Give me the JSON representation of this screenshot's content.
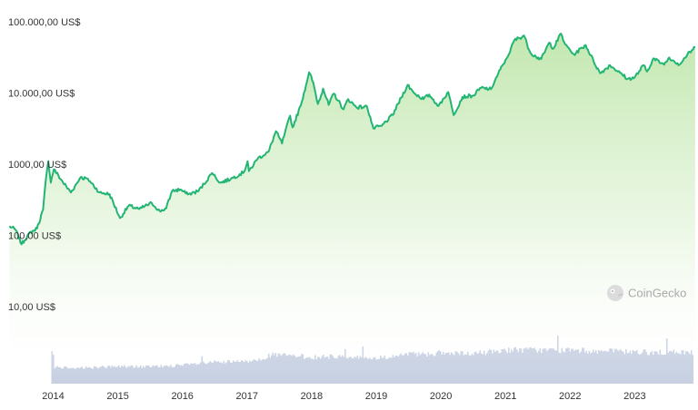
{
  "chart_data": {
    "type": "line",
    "y_scale": "log",
    "ylim": [
      10,
      100000
    ],
    "y_ticks": [
      {
        "value": 100000,
        "label": "100.000,00 US$"
      },
      {
        "value": 10000,
        "label": "10.000,00 US$"
      },
      {
        "value": 1000,
        "label": "1000,00 US$"
      },
      {
        "value": 100,
        "label": "100,00 US$"
      },
      {
        "value": 10,
        "label": "10,00 US$"
      }
    ],
    "x_ticks": [
      "2014",
      "2015",
      "2016",
      "2017",
      "2018",
      "2019",
      "2020",
      "2021",
      "2022",
      "2023"
    ],
    "x_range": [
      "2013-04",
      "2023-12"
    ],
    "series": [
      {
        "points": [
          [
            "2013-04-28",
            135
          ],
          [
            "2013-06-01",
            120
          ],
          [
            "2013-07-05",
            75
          ],
          [
            "2013-08-15",
            105
          ],
          [
            "2013-10-01",
            125
          ],
          [
            "2013-11-05",
            230
          ],
          [
            "2013-11-20",
            600
          ],
          [
            "2013-12-04",
            1100
          ],
          [
            "2013-12-18",
            550
          ],
          [
            "2014-01-05",
            850
          ],
          [
            "2014-02-25",
            560
          ],
          [
            "2014-04-10",
            400
          ],
          [
            "2014-06-03",
            650
          ],
          [
            "2014-07-15",
            620
          ],
          [
            "2014-09-20",
            400
          ],
          [
            "2014-11-15",
            380
          ],
          [
            "2015-01-14",
            175
          ],
          [
            "2015-03-01",
            260
          ],
          [
            "2015-05-01",
            235
          ],
          [
            "2015-07-10",
            285
          ],
          [
            "2015-08-25",
            220
          ],
          [
            "2015-10-01",
            240
          ],
          [
            "2015-11-04",
            420
          ],
          [
            "2015-12-20",
            440
          ],
          [
            "2016-02-01",
            375
          ],
          [
            "2016-04-01",
            420
          ],
          [
            "2016-06-17",
            750
          ],
          [
            "2016-08-02",
            550
          ],
          [
            "2016-10-01",
            620
          ],
          [
            "2016-12-15",
            780
          ],
          [
            "2017-01-04",
            1100
          ],
          [
            "2017-01-12",
            800
          ],
          [
            "2017-03-01",
            1200
          ],
          [
            "2017-05-01",
            1500
          ],
          [
            "2017-06-12",
            2900
          ],
          [
            "2017-07-16",
            1950
          ],
          [
            "2017-09-01",
            4800
          ],
          [
            "2017-09-15",
            3300
          ],
          [
            "2017-11-01",
            6700
          ],
          [
            "2017-12-17",
            19500
          ],
          [
            "2018-01-10",
            14000
          ],
          [
            "2018-02-06",
            7000
          ],
          [
            "2018-03-05",
            11500
          ],
          [
            "2018-04-06",
            6800
          ],
          [
            "2018-05-05",
            9800
          ],
          [
            "2018-06-29",
            5900
          ],
          [
            "2018-07-25",
            8200
          ],
          [
            "2018-09-10",
            6300
          ],
          [
            "2018-11-10",
            6400
          ],
          [
            "2018-12-15",
            3200
          ],
          [
            "2019-02-01",
            3450
          ],
          [
            "2019-04-02",
            4900
          ],
          [
            "2019-06-26",
            13000
          ],
          [
            "2019-08-01",
            10000
          ],
          [
            "2019-09-25",
            8200
          ],
          [
            "2019-10-26",
            9500
          ],
          [
            "2019-12-18",
            6600
          ],
          [
            "2020-02-12",
            10300
          ],
          [
            "2020-03-12",
            4900
          ],
          [
            "2020-05-01",
            8800
          ],
          [
            "2020-07-01",
            9200
          ],
          [
            "2020-08-15",
            11800
          ],
          [
            "2020-10-10",
            11300
          ],
          [
            "2020-11-20",
            18500
          ],
          [
            "2020-12-31",
            29000
          ],
          [
            "2021-01-20",
            35000
          ],
          [
            "2021-02-20",
            55000
          ],
          [
            "2021-04-14",
            64000
          ],
          [
            "2021-05-19",
            37000
          ],
          [
            "2021-06-22",
            32000
          ],
          [
            "2021-07-20",
            30000
          ],
          [
            "2021-09-05",
            51000
          ],
          [
            "2021-09-28",
            42000
          ],
          [
            "2021-11-10",
            68000
          ],
          [
            "2021-12-04",
            48000
          ],
          [
            "2022-01-22",
            35000
          ],
          [
            "2022-03-28",
            47000
          ],
          [
            "2022-05-12",
            28000
          ],
          [
            "2022-06-18",
            19000
          ],
          [
            "2022-08-14",
            24500
          ],
          [
            "2022-10-10",
            19200
          ],
          [
            "2022-11-21",
            15800
          ],
          [
            "2022-12-31",
            16500
          ],
          [
            "2023-02-20",
            24500
          ],
          [
            "2023-03-10",
            20000
          ],
          [
            "2023-04-14",
            30500
          ],
          [
            "2023-06-15",
            25000
          ],
          [
            "2023-07-13",
            31500
          ],
          [
            "2023-09-11",
            25000
          ],
          [
            "2023-10-24",
            34500
          ],
          [
            "2023-12-08",
            44000
          ]
        ]
      }
    ],
    "volume_series": {
      "note_free": true,
      "points": [
        [
          "2014-01-01",
          0.32
        ],
        [
          "2014-06-01",
          0.3
        ],
        [
          "2015-01-01",
          0.33
        ],
        [
          "2015-06-01",
          0.32
        ],
        [
          "2016-01-01",
          0.35
        ],
        [
          "2016-06-01",
          0.4
        ],
        [
          "2017-01-01",
          0.42
        ],
        [
          "2017-06-01",
          0.55
        ],
        [
          "2018-01-01",
          0.5
        ],
        [
          "2018-06-01",
          0.52
        ],
        [
          "2019-01-01",
          0.48
        ],
        [
          "2019-06-01",
          0.55
        ],
        [
          "2020-01-01",
          0.58
        ],
        [
          "2020-06-01",
          0.56
        ],
        [
          "2021-01-01",
          0.64
        ],
        [
          "2021-06-01",
          0.64
        ],
        [
          "2022-01-01",
          0.63
        ],
        [
          "2022-06-01",
          0.62
        ],
        [
          "2023-01-01",
          0.6
        ],
        [
          "2023-06-01",
          0.59
        ],
        [
          "2023-12-31",
          0.6
        ]
      ]
    },
    "grid": false,
    "legend": "none",
    "line_color": "#22b573",
    "area_color": "#b7e4a4",
    "volume_color": "#c7d0e2"
  },
  "watermark": {
    "text": "CoinGecko",
    "icon": "coingecko-logo-icon"
  }
}
